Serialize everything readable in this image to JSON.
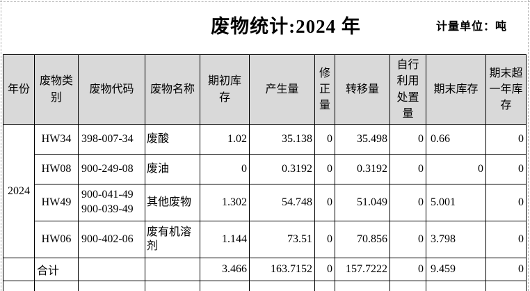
{
  "page": {
    "title": "废物统计:2024 年",
    "unit_label": "计量单位：吨"
  },
  "colors": {
    "header_bg": "#d9d9d9",
    "border": "#000000",
    "pagebreak_line": "#b3b3b3"
  },
  "table": {
    "headers": [
      "年份",
      "废物类别",
      "废物代码",
      "废物名称",
      "期初库存",
      "产生量",
      "修正量",
      "转移量",
      "自行利用处置量",
      "期末库存",
      "期末超一年库存"
    ],
    "year": "2024",
    "rows": [
      {
        "category": "HW34",
        "code": "398-007-34",
        "name": "废酸",
        "begin_stock": "1.02",
        "produced": "35.138",
        "corrected": "0",
        "transferred": "35.498",
        "self_disposed": "0",
        "end_stock": "0.66",
        "over_year_stock": "0"
      },
      {
        "category": "HW08",
        "code": "900-249-08",
        "name": "废油",
        "begin_stock": "0",
        "produced": "0.3192",
        "corrected": "0",
        "transferred": "0.3192",
        "self_disposed": "0",
        "end_stock": "0",
        "over_year_stock": "0"
      },
      {
        "category": "HW49",
        "code": "900-041-49\n900-039-49",
        "name": "其他废物",
        "begin_stock": "1.302",
        "produced": "54.748",
        "corrected": "0",
        "transferred": "51.049",
        "self_disposed": "0",
        "end_stock": "5.001",
        "over_year_stock": "0"
      },
      {
        "category": "HW06",
        "code": "900-402-06",
        "name": "废有机溶剂",
        "begin_stock": "1.144",
        "produced": "73.51",
        "corrected": "0",
        "transferred": "70.856",
        "self_disposed": "0",
        "end_stock": "3.798",
        "over_year_stock": "0"
      }
    ],
    "total": {
      "label": "合计",
      "begin_stock": "3.466",
      "produced": "163.7152",
      "corrected": "0",
      "transferred": "157.7222",
      "self_disposed": "0",
      "end_stock": "9.459",
      "over_year_stock": "0"
    }
  }
}
